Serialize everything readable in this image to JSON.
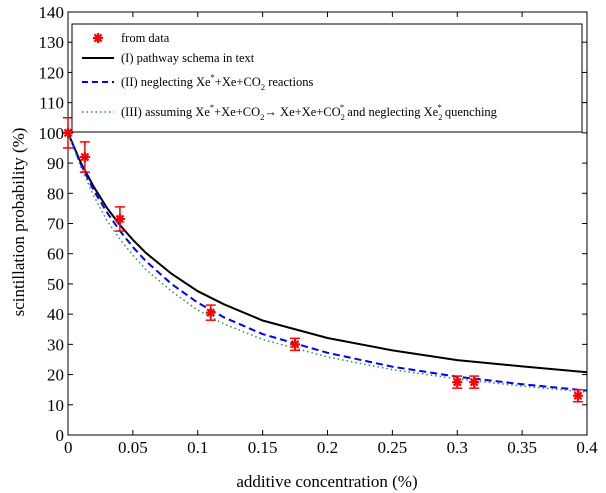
{
  "chart_data": {
    "type": "scatter",
    "xlabel": "additive concentration (%)",
    "ylabel": "scintillation probability (%)",
    "xlim": [
      0,
      0.4
    ],
    "ylim": [
      0,
      140
    ],
    "xticks": [
      0,
      0.05,
      0.1,
      0.15,
      0.2,
      0.25,
      0.3,
      0.35,
      0.4
    ],
    "xtick_labels": [
      "0",
      "0.05",
      "0.1",
      "0.15",
      "0.2",
      "0.25",
      "0.3",
      "0.35",
      "0.4"
    ],
    "yticks": [
      0,
      10,
      20,
      30,
      40,
      50,
      60,
      70,
      80,
      90,
      100,
      110,
      120,
      130,
      140
    ],
    "ytick_labels": [
      "0",
      "10",
      "20",
      "30",
      "40",
      "50",
      "60",
      "70",
      "80",
      "90",
      "100",
      "110",
      "120",
      "130",
      "140"
    ],
    "grid": false,
    "legend_position": "top-left",
    "legend": [
      {
        "style": "marker",
        "color": "#ff0000",
        "text": "from data"
      },
      {
        "style": "solid",
        "color": "#000000",
        "text": "(I) pathway schema in text"
      },
      {
        "style": "dashed",
        "color": "#0000ff",
        "text": "(II) neglecting Xe*+Xe+CO2 reactions"
      },
      {
        "style": "dotted",
        "color": "#2e8b57",
        "text": "(III) assuming Xe*+Xe+CO2 → Xe+Xe+CO2* and neglecting Xe2* quenching"
      }
    ],
    "data_points": {
      "name": "from data",
      "color": "#ff0000",
      "x": [
        0,
        0.013,
        0.04,
        0.11,
        0.175,
        0.3,
        0.313,
        0.393
      ],
      "y": [
        100,
        92,
        71.5,
        40.5,
        30,
        17.5,
        17.5,
        13
      ],
      "yerr": [
        5,
        5,
        4,
        2.5,
        2,
        2,
        2,
        2
      ]
    },
    "series": [
      {
        "style": "solid",
        "color": "#000000",
        "x": [
          0,
          0.01,
          0.02,
          0.03,
          0.04,
          0.05,
          0.06,
          0.08,
          0.1,
          0.12,
          0.15,
          0.2,
          0.25,
          0.3,
          0.35,
          0.4
        ],
        "y": [
          100,
          90,
          82,
          75.2,
          69.5,
          64.6,
          60.3,
          53.3,
          47.6,
          43.3,
          37.9,
          32.1,
          28,
          24.8,
          22.7,
          20.8
        ]
      },
      {
        "style": "dashed",
        "color": "#0000ff",
        "x": [
          0,
          0.01,
          0.02,
          0.03,
          0.04,
          0.05,
          0.06,
          0.08,
          0.1,
          0.12,
          0.15,
          0.2,
          0.25,
          0.3,
          0.35,
          0.4
        ],
        "y": [
          100,
          89.5,
          80.8,
          73.7,
          67.6,
          62.2,
          57.6,
          49.9,
          43.8,
          39,
          33.4,
          27.2,
          22.6,
          19.3,
          16.8,
          14.7
        ]
      },
      {
        "style": "dotted",
        "color": "#2e8b57",
        "x": [
          0,
          0.01,
          0.02,
          0.03,
          0.04,
          0.05,
          0.06,
          0.08,
          0.1,
          0.12,
          0.15,
          0.2,
          0.25,
          0.3,
          0.35,
          0.4
        ],
        "y": [
          100,
          88.5,
          79,
          71,
          64.8,
          59.5,
          54.8,
          47.5,
          41.3,
          36.8,
          31.6,
          25.8,
          21.6,
          18.6,
          16.2,
          14.2
        ]
      }
    ]
  }
}
